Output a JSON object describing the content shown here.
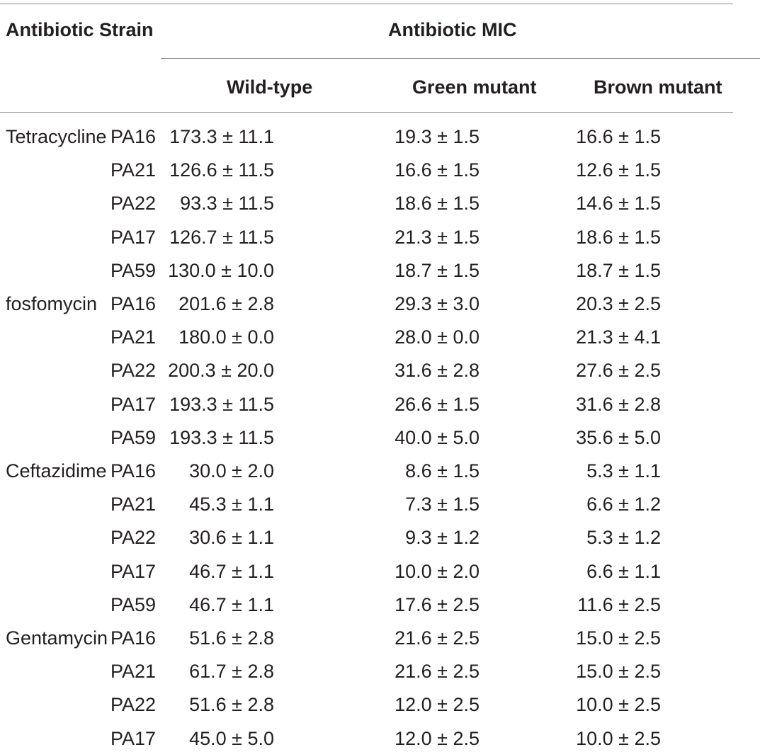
{
  "table": {
    "headers": {
      "col1": "Antibiotic Strain",
      "group": "Antibiotic MIC",
      "wild": "Wild-type",
      "green": "Green mutant",
      "brown": "Brown mutant"
    },
    "rows": [
      {
        "antibiotic": "Tetracycline",
        "strain": "PA16",
        "wild": "173.3 ± 11.1",
        "green": "19.3 ± 1.5",
        "brown": "16.6 ± 1.5"
      },
      {
        "antibiotic": "",
        "strain": "PA21",
        "wild": "126.6 ± 11.5",
        "green": "16.6 ± 1.5",
        "brown": "12.6 ± 1.5"
      },
      {
        "antibiotic": "",
        "strain": "PA22",
        "wild": "93.3 ± 11.5",
        "green": "18.6 ± 1.5",
        "brown": "14.6 ± 1.5"
      },
      {
        "antibiotic": "",
        "strain": "PA17",
        "wild": "126.7 ± 11.5",
        "green": "21.3 ± 1.5",
        "brown": "18.6 ± 1.5"
      },
      {
        "antibiotic": "",
        "strain": "PA59",
        "wild": "130.0 ± 10.0",
        "green": "18.7 ± 1.5",
        "brown": "18.7 ± 1.5"
      },
      {
        "antibiotic": "fosfomycin",
        "strain": "PA16",
        "wild": "201.6 ± 2.8",
        "green": "29.3 ± 3.0",
        "brown": "20.3 ± 2.5"
      },
      {
        "antibiotic": "",
        "strain": "PA21",
        "wild": "180.0 ± 0.0",
        "green": "28.0 ± 0.0",
        "brown": "21.3 ± 4.1"
      },
      {
        "antibiotic": "",
        "strain": "PA22",
        "wild": "200.3 ± 20.0",
        "green": "31.6 ± 2.8",
        "brown": "27.6 ± 2.5"
      },
      {
        "antibiotic": "",
        "strain": "PA17",
        "wild": "193.3 ± 11.5",
        "green": "26.6 ± 1.5",
        "brown": "31.6 ± 2.8"
      },
      {
        "antibiotic": "",
        "strain": "PA59",
        "wild": "193.3 ± 11.5",
        "green": "40.0 ± 5.0",
        "brown": "35.6 ± 5.0"
      },
      {
        "antibiotic": "Ceftazidime",
        "strain": "PA16",
        "wild": "30.0 ± 2.0",
        "green": "8.6 ± 1.5",
        "brown": "5.3 ± 1.1"
      },
      {
        "antibiotic": "",
        "strain": "PA21",
        "wild": "45.3 ± 1.1",
        "green": "7.3 ± 1.5",
        "brown": "6.6 ± 1.2"
      },
      {
        "antibiotic": "",
        "strain": "PA22",
        "wild": "30.6 ± 1.1",
        "green": "9.3 ± 1.2",
        "brown": "5.3 ± 1.2"
      },
      {
        "antibiotic": "",
        "strain": "PA17",
        "wild": "46.7 ± 1.1",
        "green": "10.0 ± 2.0",
        "brown": "6.6 ± 1.1"
      },
      {
        "antibiotic": "",
        "strain": "PA59",
        "wild": "46.7 ± 1.1",
        "green": "17.6 ± 2.5",
        "brown": "11.6 ± 2.5"
      },
      {
        "antibiotic": "Gentamycin",
        "strain": "PA16",
        "wild": "51.6 ± 2.8",
        "green": "21.6 ± 2.5",
        "brown": "15.0 ± 2.5"
      },
      {
        "antibiotic": "",
        "strain": "PA21",
        "wild": "61.7 ± 2.8",
        "green": "21.6 ± 2.5",
        "brown": "15.0 ± 2.5"
      },
      {
        "antibiotic": "",
        "strain": "PA22",
        "wild": "51.6 ± 2.8",
        "green": "12.0 ± 2.5",
        "brown": "10.0 ± 2.5"
      },
      {
        "antibiotic": "",
        "strain": "PA17",
        "wild": "45.0 ± 5.0",
        "green": "12.0 ± 2.5",
        "brown": "10.0 ± 2.5"
      }
    ]
  }
}
